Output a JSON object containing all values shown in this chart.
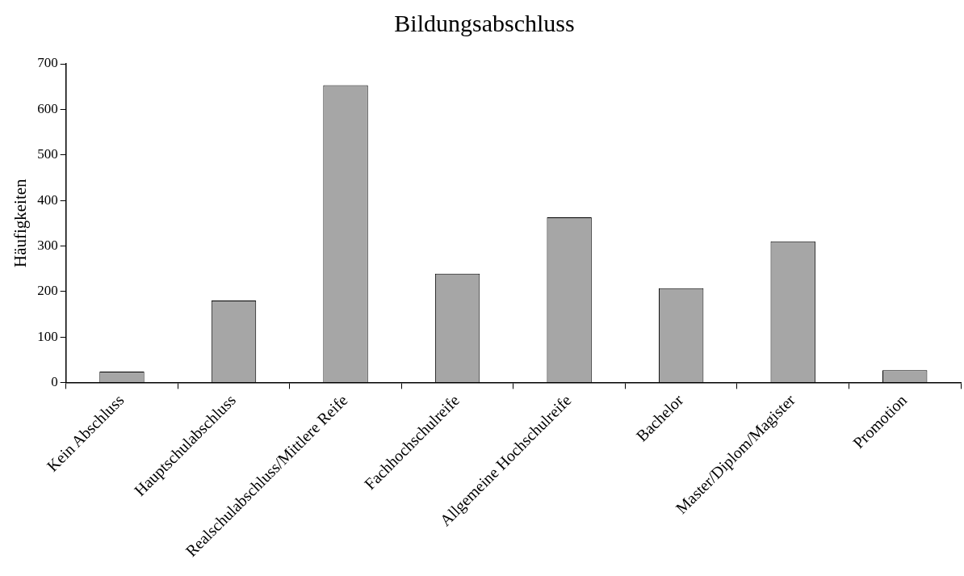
{
  "chart_data": {
    "type": "bar",
    "title": "Bildungsabschluss",
    "ylabel": "Häufigkeiten",
    "categories": [
      "Kein Abschluss",
      "Hauptschulabschluss",
      "Realschulabschluss/Mittlere Reife",
      "Fachhochschulreife",
      "Allgemeine Hochschulreife",
      "Bachelor",
      "Master/Diplom/Magister",
      "Promotion"
    ],
    "values": [
      24,
      180,
      653,
      239,
      363,
      207,
      310,
      27
    ],
    "color": "#a6a6a6",
    "ylim": [
      0,
      700
    ],
    "yticks": [
      0,
      100,
      200,
      300,
      400,
      500,
      600,
      700
    ],
    "grid": false,
    "legend": false
  }
}
